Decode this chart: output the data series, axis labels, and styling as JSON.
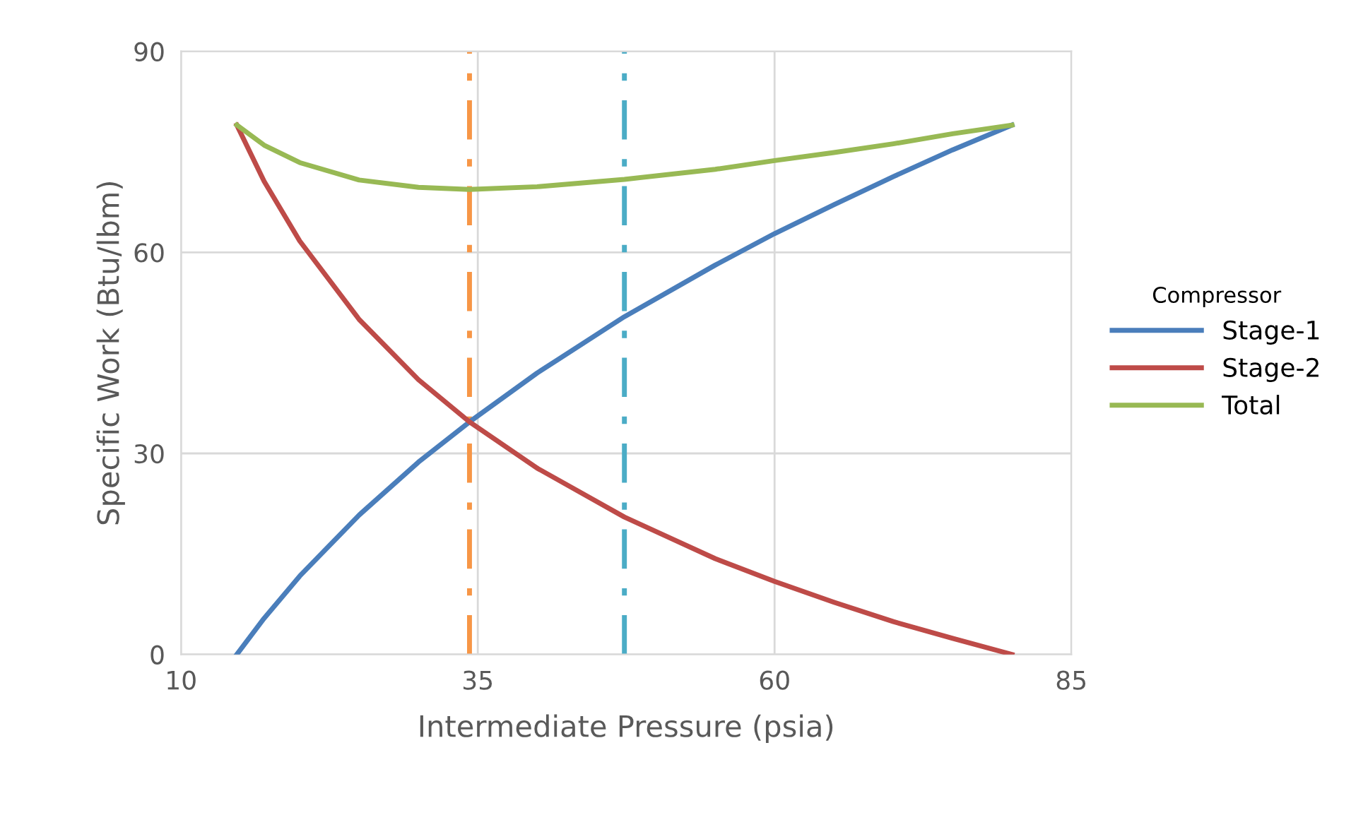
{
  "chart_data": {
    "type": "line",
    "xlabel": "Intermediate Pressure (psia)",
    "ylabel": "Specific Work (Btu/lbm)",
    "legend_title": "Compressor",
    "legend": "right",
    "xlim": [
      10,
      85
    ],
    "xticks": [
      10,
      35,
      60,
      85
    ],
    "ylim": [
      0,
      90
    ],
    "yticks": [
      0,
      30,
      60,
      90
    ],
    "grid": true,
    "marker": "none",
    "line_style": "solid",
    "x": [
      14.7,
      17,
      20,
      25,
      30,
      34.3,
      40,
      47.35,
      55,
      60,
      65,
      70,
      75,
      80
    ],
    "series": [
      {
        "name": "Stage-1",
        "color": "#4a7ebb",
        "values": [
          0,
          5.4,
          11.7,
          20.8,
          28.7,
          34.7,
          42.0,
          50.4,
          58.1,
          62.8,
          67.1,
          71.3,
          75.3,
          79.0
        ]
      },
      {
        "name": "Stage-2",
        "color": "#be4b48",
        "values": [
          79.0,
          70.6,
          61.7,
          50.0,
          41.0,
          34.7,
          27.8,
          20.5,
          14.3,
          10.9,
          7.8,
          4.9,
          2.4,
          0
        ]
      },
      {
        "name": "Total",
        "color": "#98b954",
        "values": [
          79.0,
          76.0,
          73.4,
          70.8,
          69.7,
          69.4,
          69.8,
          70.9,
          72.4,
          73.7,
          74.9,
          76.2,
          77.7,
          79.0
        ]
      }
    ],
    "ref_lines": [
      {
        "axis": "x",
        "value": 34.3,
        "color": "#f79646",
        "line_style": "dashdot"
      },
      {
        "axis": "x",
        "value": 47.35,
        "color": "#4bacc6",
        "line_style": "dashdot"
      }
    ]
  }
}
